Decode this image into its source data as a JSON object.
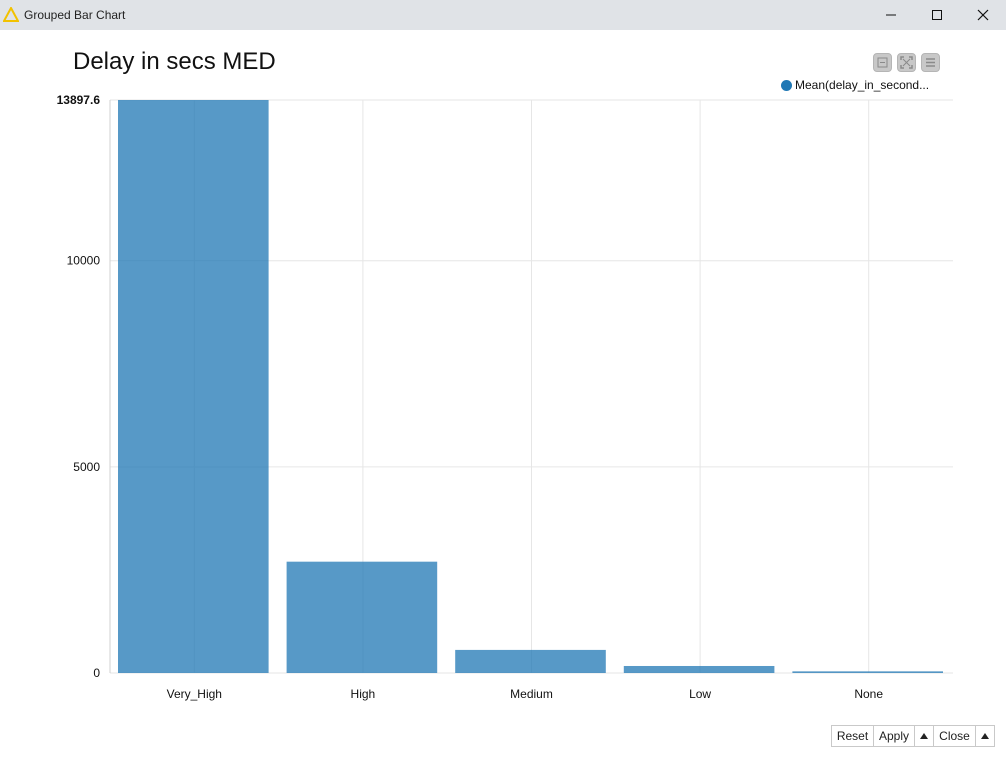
{
  "window": {
    "title": "Grouped Bar Chart",
    "icon": "knime-warning-triangle-icon"
  },
  "controls": {
    "icons": [
      "zoom-icon",
      "fullscreen-icon",
      "menu-icon"
    ]
  },
  "footer": {
    "reset": "Reset",
    "apply": "Apply",
    "close": "Close"
  },
  "chart_data": {
    "type": "bar",
    "title": "Delay in secs MED",
    "xlabel": "",
    "ylabel": "",
    "categories": [
      "Very_High",
      "High",
      "Medium",
      "Low",
      "None"
    ],
    "series": [
      {
        "name": "Mean(delay_in_second...",
        "values": [
          13897.6,
          2700,
          560,
          170,
          40
        ],
        "color": "#1f77b4"
      }
    ],
    "ylim": [
      0,
      13897.6
    ],
    "yticks": [
      0,
      5000,
      10000,
      13897.6
    ],
    "ytick_labels": [
      "0",
      "5000",
      "10000",
      "13897.6"
    ],
    "grid": true,
    "legend_position": "top-right"
  }
}
